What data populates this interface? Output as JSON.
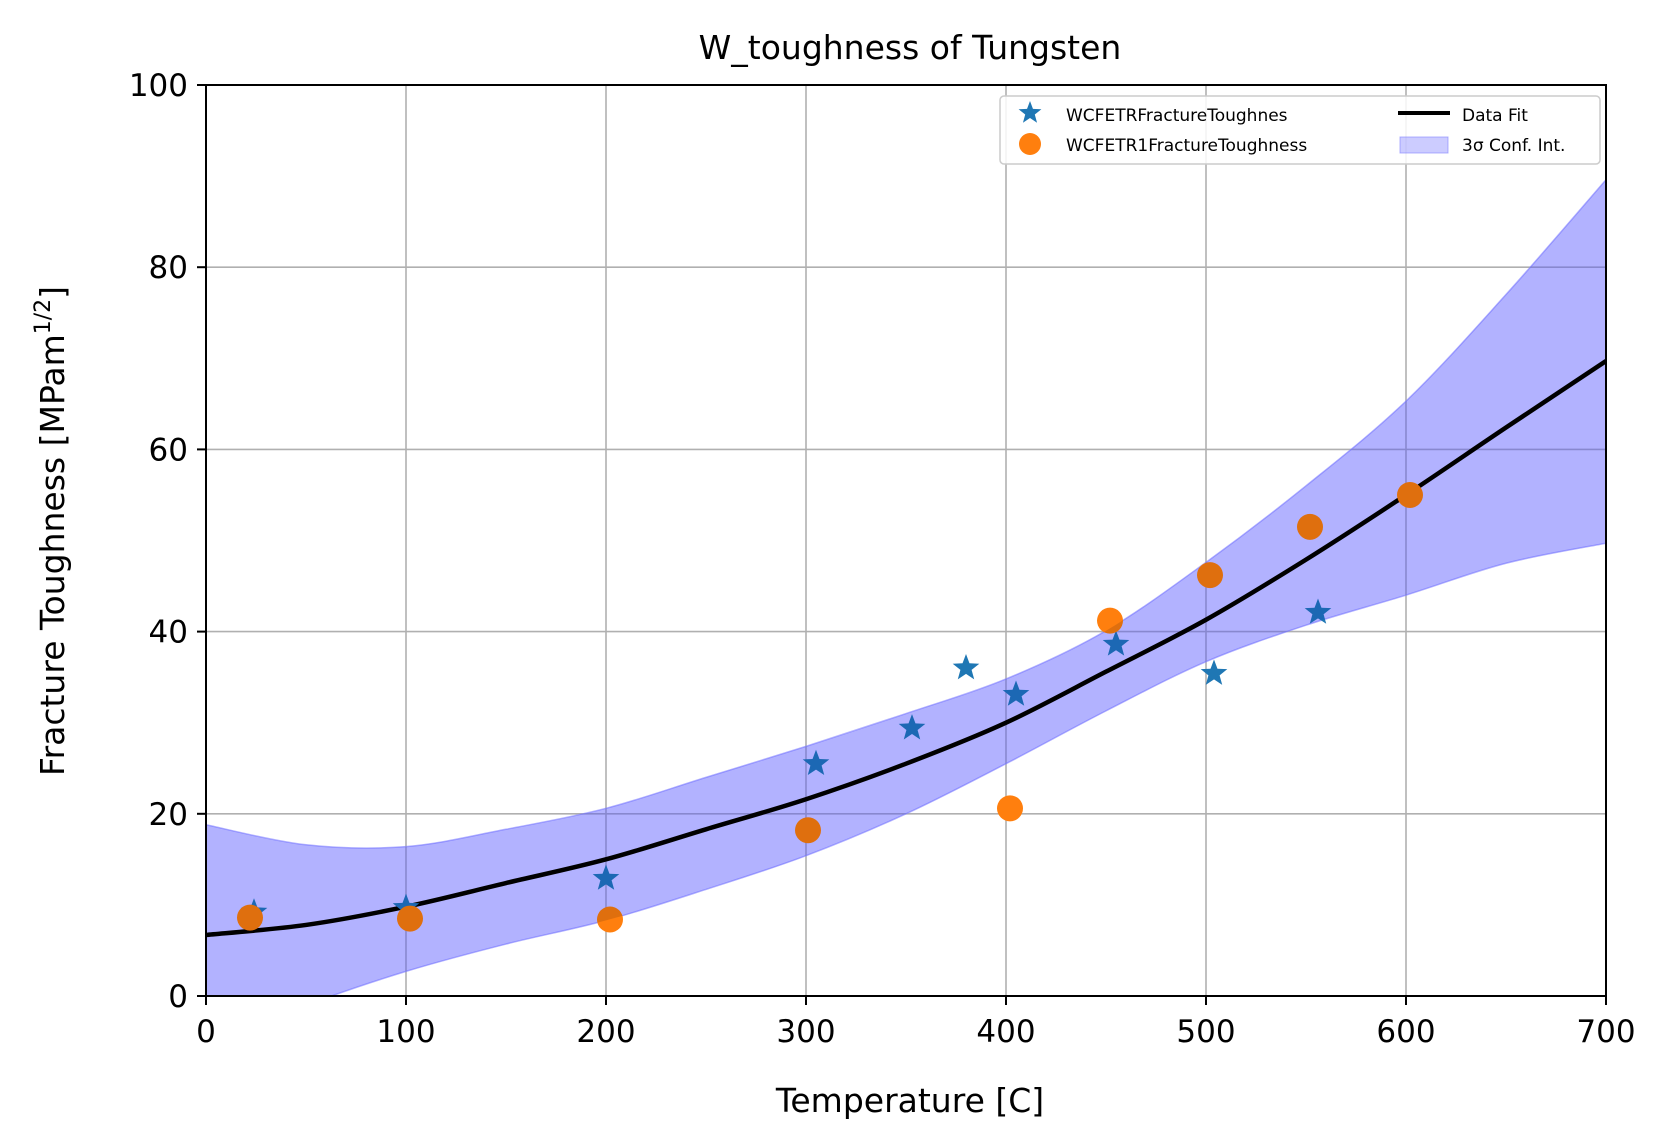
{
  "chart_data": {
    "type": "scatter",
    "title": "W_toughness of Tungsten",
    "xlabel": "Temperature [C]",
    "ylabel": "Fracture Toughness  [MPam",
    "ylabel_sup": "1/2",
    "ylabel_end": "]",
    "xlim": [
      0,
      700
    ],
    "ylim": [
      0,
      100
    ],
    "xticks": [
      0,
      100,
      200,
      300,
      400,
      500,
      600,
      700
    ],
    "yticks": [
      0,
      20,
      40,
      60,
      80,
      100
    ],
    "grid": true,
    "legend_position": "top-right",
    "series": [
      {
        "name": "WCFETRFractureToughnes",
        "marker": "star",
        "color": "#1f77b4",
        "points": [
          {
            "x": 24,
            "y": 9.2
          },
          {
            "x": 100,
            "y": 9.7
          },
          {
            "x": 200,
            "y": 12.9
          },
          {
            "x": 305,
            "y": 25.5
          },
          {
            "x": 353,
            "y": 29.4
          },
          {
            "x": 380,
            "y": 36.0
          },
          {
            "x": 405,
            "y": 33.1
          },
          {
            "x": 455,
            "y": 38.6
          },
          {
            "x": 504,
            "y": 35.4
          },
          {
            "x": 556,
            "y": 42.1
          }
        ]
      },
      {
        "name": "WCFETR1FractureToughness",
        "marker": "circle",
        "color": "#ff7f0e",
        "points": [
          {
            "x": 22,
            "y": 8.6
          },
          {
            "x": 102,
            "y": 8.5
          },
          {
            "x": 202,
            "y": 8.4
          },
          {
            "x": 301,
            "y": 18.2
          },
          {
            "x": 402,
            "y": 20.6
          },
          {
            "x": 452,
            "y": 41.2
          },
          {
            "x": 502,
            "y": 46.2
          },
          {
            "x": 552,
            "y": 51.5
          },
          {
            "x": 602,
            "y": 55.0
          }
        ]
      }
    ],
    "fit": {
      "name": "Data Fit",
      "color": "#000000",
      "x": [
        0,
        50,
        100,
        150,
        200,
        250,
        300,
        350,
        400,
        450,
        500,
        550,
        600,
        650,
        700
      ],
      "y": [
        6.7,
        7.8,
        9.8,
        12.4,
        15.0,
        18.3,
        21.6,
        25.5,
        30.0,
        35.6,
        41.3,
        47.9,
        55.0,
        62.4,
        69.7
      ]
    },
    "confidence_band": {
      "name": "3σ Conf. Int.",
      "color": "#8080ff",
      "x": [
        0,
        50,
        100,
        150,
        200,
        250,
        300,
        350,
        400,
        450,
        500,
        550,
        600,
        650,
        700
      ],
      "upper": [
        18.8,
        16.6,
        16.4,
        18.3,
        20.6,
        24.0,
        27.4,
        31.0,
        34.8,
        40.1,
        47.6,
        56.0,
        65.3,
        77.0,
        89.6
      ],
      "lower": [
        -5.3,
        -1.0,
        2.7,
        5.7,
        8.3,
        11.7,
        15.4,
        20.0,
        25.5,
        31.3,
        36.7,
        40.7,
        44.0,
        47.5,
        49.7
      ]
    }
  }
}
